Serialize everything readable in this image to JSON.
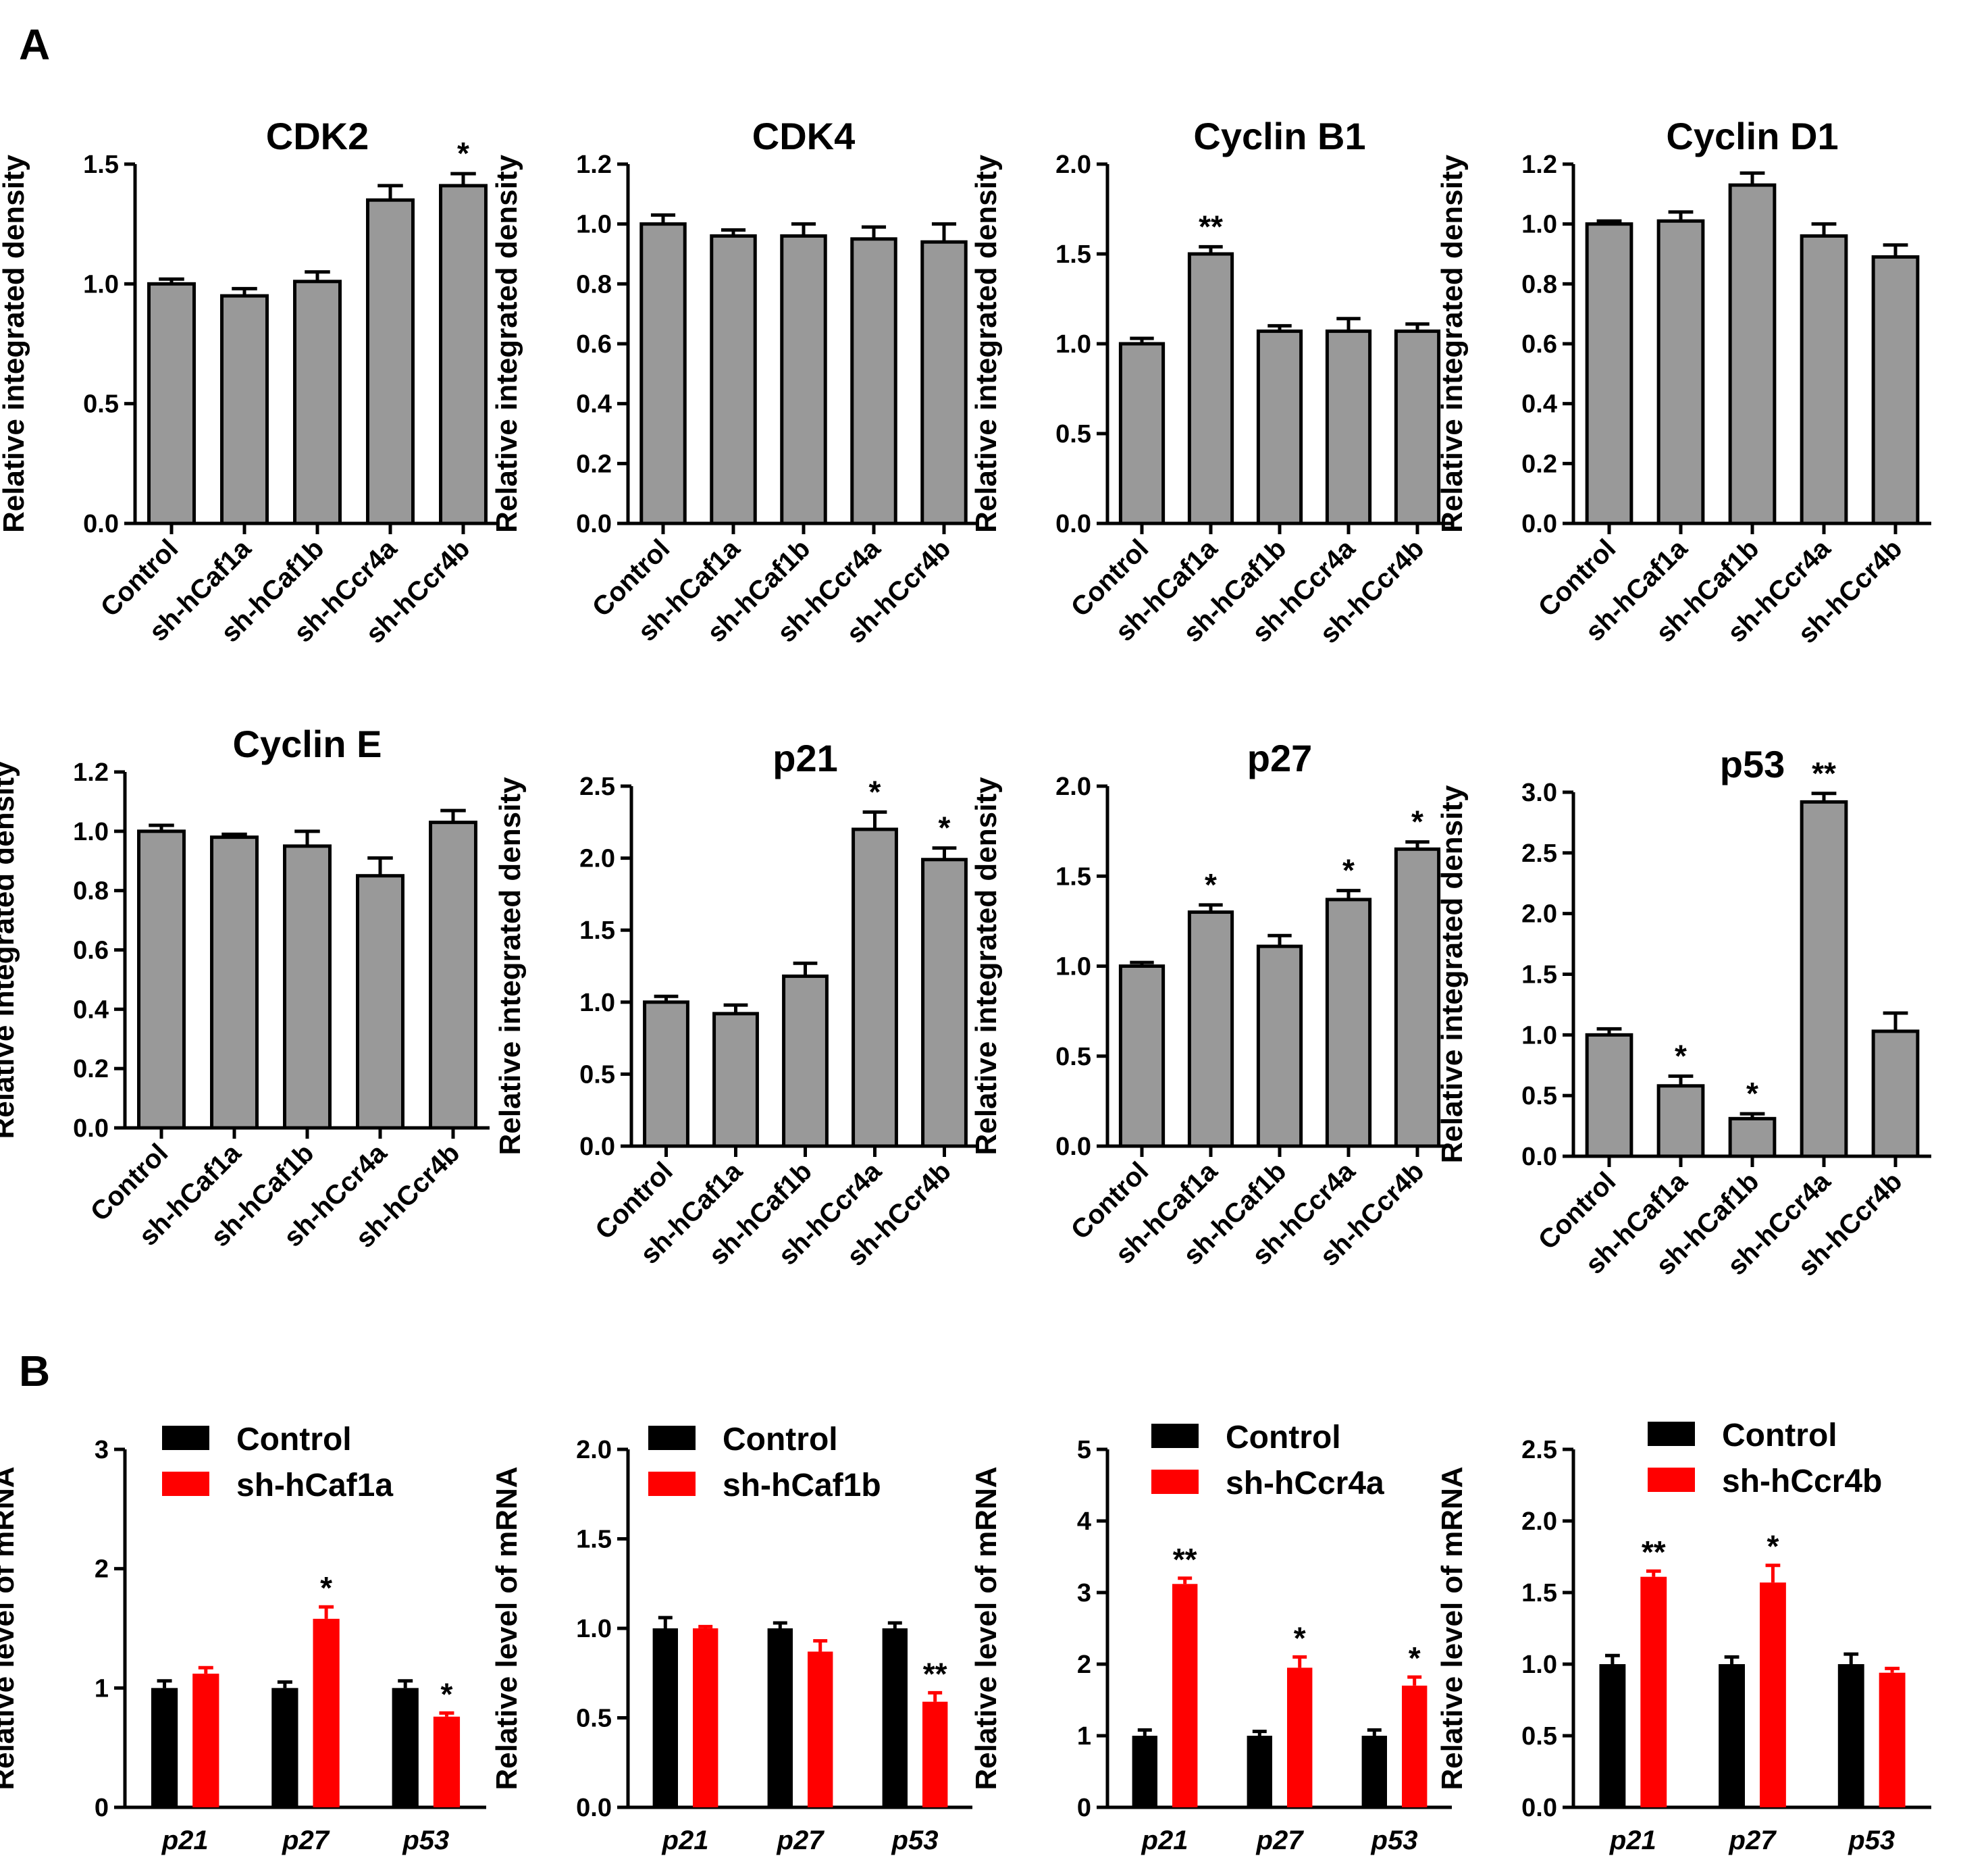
{
  "panels": {
    "A": "A",
    "B": "B"
  },
  "colors": {
    "gray_bar": "#999999",
    "control": "#000000",
    "treatment": "#ff0000",
    "axis": "#000000"
  },
  "chart_data": [
    {
      "id": "CDK2",
      "panel": "A",
      "type": "bar",
      "title": "CDK2",
      "ylabel": "Relative integrated density",
      "categories": [
        "Control",
        "sh-hCaf1a",
        "sh-hCaf1b",
        "sh-hCcr4a",
        "sh-hCcr4b"
      ],
      "values": [
        1.0,
        0.95,
        1.01,
        1.35,
        1.41
      ],
      "errors": [
        0.02,
        0.03,
        0.04,
        0.06,
        0.05
      ],
      "significance": [
        "",
        "",
        "",
        "",
        "*"
      ],
      "ylim": [
        0,
        1.5
      ],
      "yticks": [
        "0.0",
        "0.5",
        "1.0",
        "1.5"
      ]
    },
    {
      "id": "CDK4",
      "panel": "A",
      "type": "bar",
      "title": "CDK4",
      "ylabel": "Relative integrated density",
      "categories": [
        "Control",
        "sh-hCaf1a",
        "sh-hCaf1b",
        "sh-hCcr4a",
        "sh-hCcr4b"
      ],
      "values": [
        1.0,
        0.96,
        0.96,
        0.95,
        0.94
      ],
      "errors": [
        0.03,
        0.02,
        0.04,
        0.04,
        0.06
      ],
      "significance": [
        "",
        "",
        "",
        "",
        ""
      ],
      "ylim": [
        0,
        1.2
      ],
      "yticks": [
        "0.0",
        "0.2",
        "0.4",
        "0.6",
        "0.8",
        "1.0",
        "1.2"
      ]
    },
    {
      "id": "CyclinB1",
      "panel": "A",
      "type": "bar",
      "title": "Cyclin B1",
      "ylabel": "Relative integrated density",
      "categories": [
        "Control",
        "sh-hCaf1a",
        "sh-hCaf1b",
        "sh-hCcr4a",
        "sh-hCcr4b"
      ],
      "values": [
        1.0,
        1.5,
        1.07,
        1.07,
        1.07
      ],
      "errors": [
        0.03,
        0.04,
        0.03,
        0.07,
        0.04
      ],
      "significance": [
        "",
        "**",
        "",
        "",
        ""
      ],
      "ylim": [
        0,
        2.0
      ],
      "yticks": [
        "0.0",
        "0.5",
        "1.0",
        "1.5",
        "2.0"
      ]
    },
    {
      "id": "CyclinD1",
      "panel": "A",
      "type": "bar",
      "title": "Cyclin D1",
      "ylabel": "Relative integrated density",
      "categories": [
        "Control",
        "sh-hCaf1a",
        "sh-hCaf1b",
        "sh-hCcr4a",
        "sh-hCcr4b"
      ],
      "values": [
        1.0,
        1.01,
        1.13,
        0.96,
        0.89
      ],
      "errors": [
        0.01,
        0.03,
        0.04,
        0.04,
        0.04
      ],
      "significance": [
        "",
        "",
        "",
        "",
        ""
      ],
      "ylim": [
        0,
        1.2
      ],
      "yticks": [
        "0.0",
        "0.2",
        "0.4",
        "0.6",
        "0.8",
        "1.0",
        "1.2"
      ]
    },
    {
      "id": "CyclinE",
      "panel": "A",
      "type": "bar",
      "title": "Cyclin E",
      "ylabel": "Relative integrated density",
      "categories": [
        "Control",
        "sh-hCaf1a",
        "sh-hCaf1b",
        "sh-hCcr4a",
        "sh-hCcr4b"
      ],
      "values": [
        1.0,
        0.98,
        0.95,
        0.85,
        1.03
      ],
      "errors": [
        0.02,
        0.01,
        0.05,
        0.06,
        0.04
      ],
      "significance": [
        "",
        "",
        "",
        "",
        ""
      ],
      "ylim": [
        0,
        1.2
      ],
      "yticks": [
        "0.0",
        "0.2",
        "0.4",
        "0.6",
        "0.8",
        "1.0",
        "1.2"
      ]
    },
    {
      "id": "p21",
      "panel": "A",
      "type": "bar",
      "title": "p21",
      "ylabel": "Relative integrated density",
      "categories": [
        "Control",
        "sh-hCaf1a",
        "sh-hCaf1b",
        "sh-hCcr4a",
        "sh-hCcr4b"
      ],
      "values": [
        1.0,
        0.92,
        1.18,
        2.2,
        1.99
      ],
      "errors": [
        0.04,
        0.06,
        0.09,
        0.12,
        0.08
      ],
      "significance": [
        "",
        "",
        "",
        "*",
        "*"
      ],
      "ylim": [
        0,
        2.5
      ],
      "yticks": [
        "0.0",
        "0.5",
        "1.0",
        "1.5",
        "2.0",
        "2.5"
      ]
    },
    {
      "id": "p27",
      "panel": "A",
      "type": "bar",
      "title": "p27",
      "ylabel": "Relative integrated density",
      "categories": [
        "Control",
        "sh-hCaf1a",
        "sh-hCaf1b",
        "sh-hCcr4a",
        "sh-hCcr4b"
      ],
      "values": [
        1.0,
        1.3,
        1.11,
        1.37,
        1.65
      ],
      "errors": [
        0.02,
        0.04,
        0.06,
        0.05,
        0.04
      ],
      "significance": [
        "",
        "*",
        "",
        "*",
        "*"
      ],
      "ylim": [
        0,
        2.0
      ],
      "yticks": [
        "0.0",
        "0.5",
        "1.0",
        "1.5",
        "2.0"
      ]
    },
    {
      "id": "p53",
      "panel": "A",
      "type": "bar",
      "title": "p53",
      "ylabel": "Relative integrated density",
      "categories": [
        "Control",
        "sh-hCaf1a",
        "sh-hCaf1b",
        "sh-hCcr4a",
        "sh-hCcr4b"
      ],
      "values": [
        1.0,
        0.58,
        0.31,
        2.92,
        1.03
      ],
      "errors": [
        0.05,
        0.08,
        0.04,
        0.07,
        0.15
      ],
      "significance": [
        "",
        "*",
        "*",
        "**",
        ""
      ],
      "ylim": [
        0,
        3.0
      ],
      "yticks": [
        "0.0",
        "0.5",
        "1.0",
        "1.5",
        "2.0",
        "2.5",
        "3.0"
      ]
    },
    {
      "id": "mRNA_hCaf1a",
      "panel": "B",
      "type": "bar",
      "ylabel": "Relative level of mRNA",
      "categories": [
        "p21",
        "p27",
        "p53"
      ],
      "series": [
        {
          "name": "Control",
          "color": "#000000",
          "values": [
            1.0,
            1.0,
            1.0
          ],
          "errors": [
            0.06,
            0.05,
            0.06
          ],
          "significance": [
            "",
            "",
            ""
          ]
        },
        {
          "name": "sh-hCaf1a",
          "color": "#ff0000",
          "values": [
            1.12,
            1.58,
            0.76
          ],
          "errors": [
            0.05,
            0.1,
            0.03
          ],
          "significance": [
            "",
            "*",
            "*"
          ]
        }
      ],
      "ylim": [
        0,
        3
      ],
      "yticks": [
        "0",
        "1",
        "2",
        "3"
      ]
    },
    {
      "id": "mRNA_hCaf1b",
      "panel": "B",
      "type": "bar",
      "ylabel": "Relative level of mRNA",
      "categories": [
        "p21",
        "p27",
        "p53"
      ],
      "series": [
        {
          "name": "Control",
          "color": "#000000",
          "values": [
            1.0,
            1.0,
            1.0
          ],
          "errors": [
            0.06,
            0.03,
            0.03
          ],
          "significance": [
            "",
            "",
            ""
          ]
        },
        {
          "name": "sh-hCaf1b",
          "color": "#ff0000",
          "values": [
            1.0,
            0.87,
            0.59
          ],
          "errors": [
            0.01,
            0.06,
            0.05
          ],
          "significance": [
            "",
            "",
            "**"
          ]
        }
      ],
      "ylim": [
        0,
        2.0
      ],
      "yticks": [
        "0.0",
        "0.5",
        "1.0",
        "1.5",
        "2.0"
      ]
    },
    {
      "id": "mRNA_hCcr4a",
      "panel": "B",
      "type": "bar",
      "ylabel": "Relative level of mRNA",
      "categories": [
        "p21",
        "p27",
        "p53"
      ],
      "series": [
        {
          "name": "Control",
          "color": "#000000",
          "values": [
            1.0,
            1.0,
            1.0
          ],
          "errors": [
            0.08,
            0.06,
            0.08
          ],
          "significance": [
            "",
            "",
            ""
          ]
        },
        {
          "name": "sh-hCcr4a",
          "color": "#ff0000",
          "values": [
            3.12,
            1.95,
            1.7
          ],
          "errors": [
            0.08,
            0.15,
            0.12
          ],
          "significance": [
            "**",
            "*",
            "*"
          ]
        }
      ],
      "ylim": [
        0,
        5
      ],
      "yticks": [
        "0",
        "1",
        "2",
        "3",
        "4",
        "5"
      ]
    },
    {
      "id": "mRNA_hCcr4b",
      "panel": "B",
      "type": "bar",
      "ylabel": "Relative level of mRNA",
      "categories": [
        "p21",
        "p27",
        "p53"
      ],
      "series": [
        {
          "name": "Control",
          "color": "#000000",
          "values": [
            1.0,
            1.0,
            1.0
          ],
          "errors": [
            0.06,
            0.05,
            0.07
          ],
          "significance": [
            "",
            "",
            ""
          ]
        },
        {
          "name": "sh-hCcr4b",
          "color": "#ff0000",
          "values": [
            1.61,
            1.57,
            0.94
          ],
          "errors": [
            0.04,
            0.12,
            0.03
          ],
          "significance": [
            "**",
            "*",
            ""
          ]
        }
      ],
      "ylim": [
        0,
        2.5
      ],
      "yticks": [
        "0.0",
        "0.5",
        "1.0",
        "1.5",
        "2.0",
        "2.5"
      ]
    }
  ]
}
